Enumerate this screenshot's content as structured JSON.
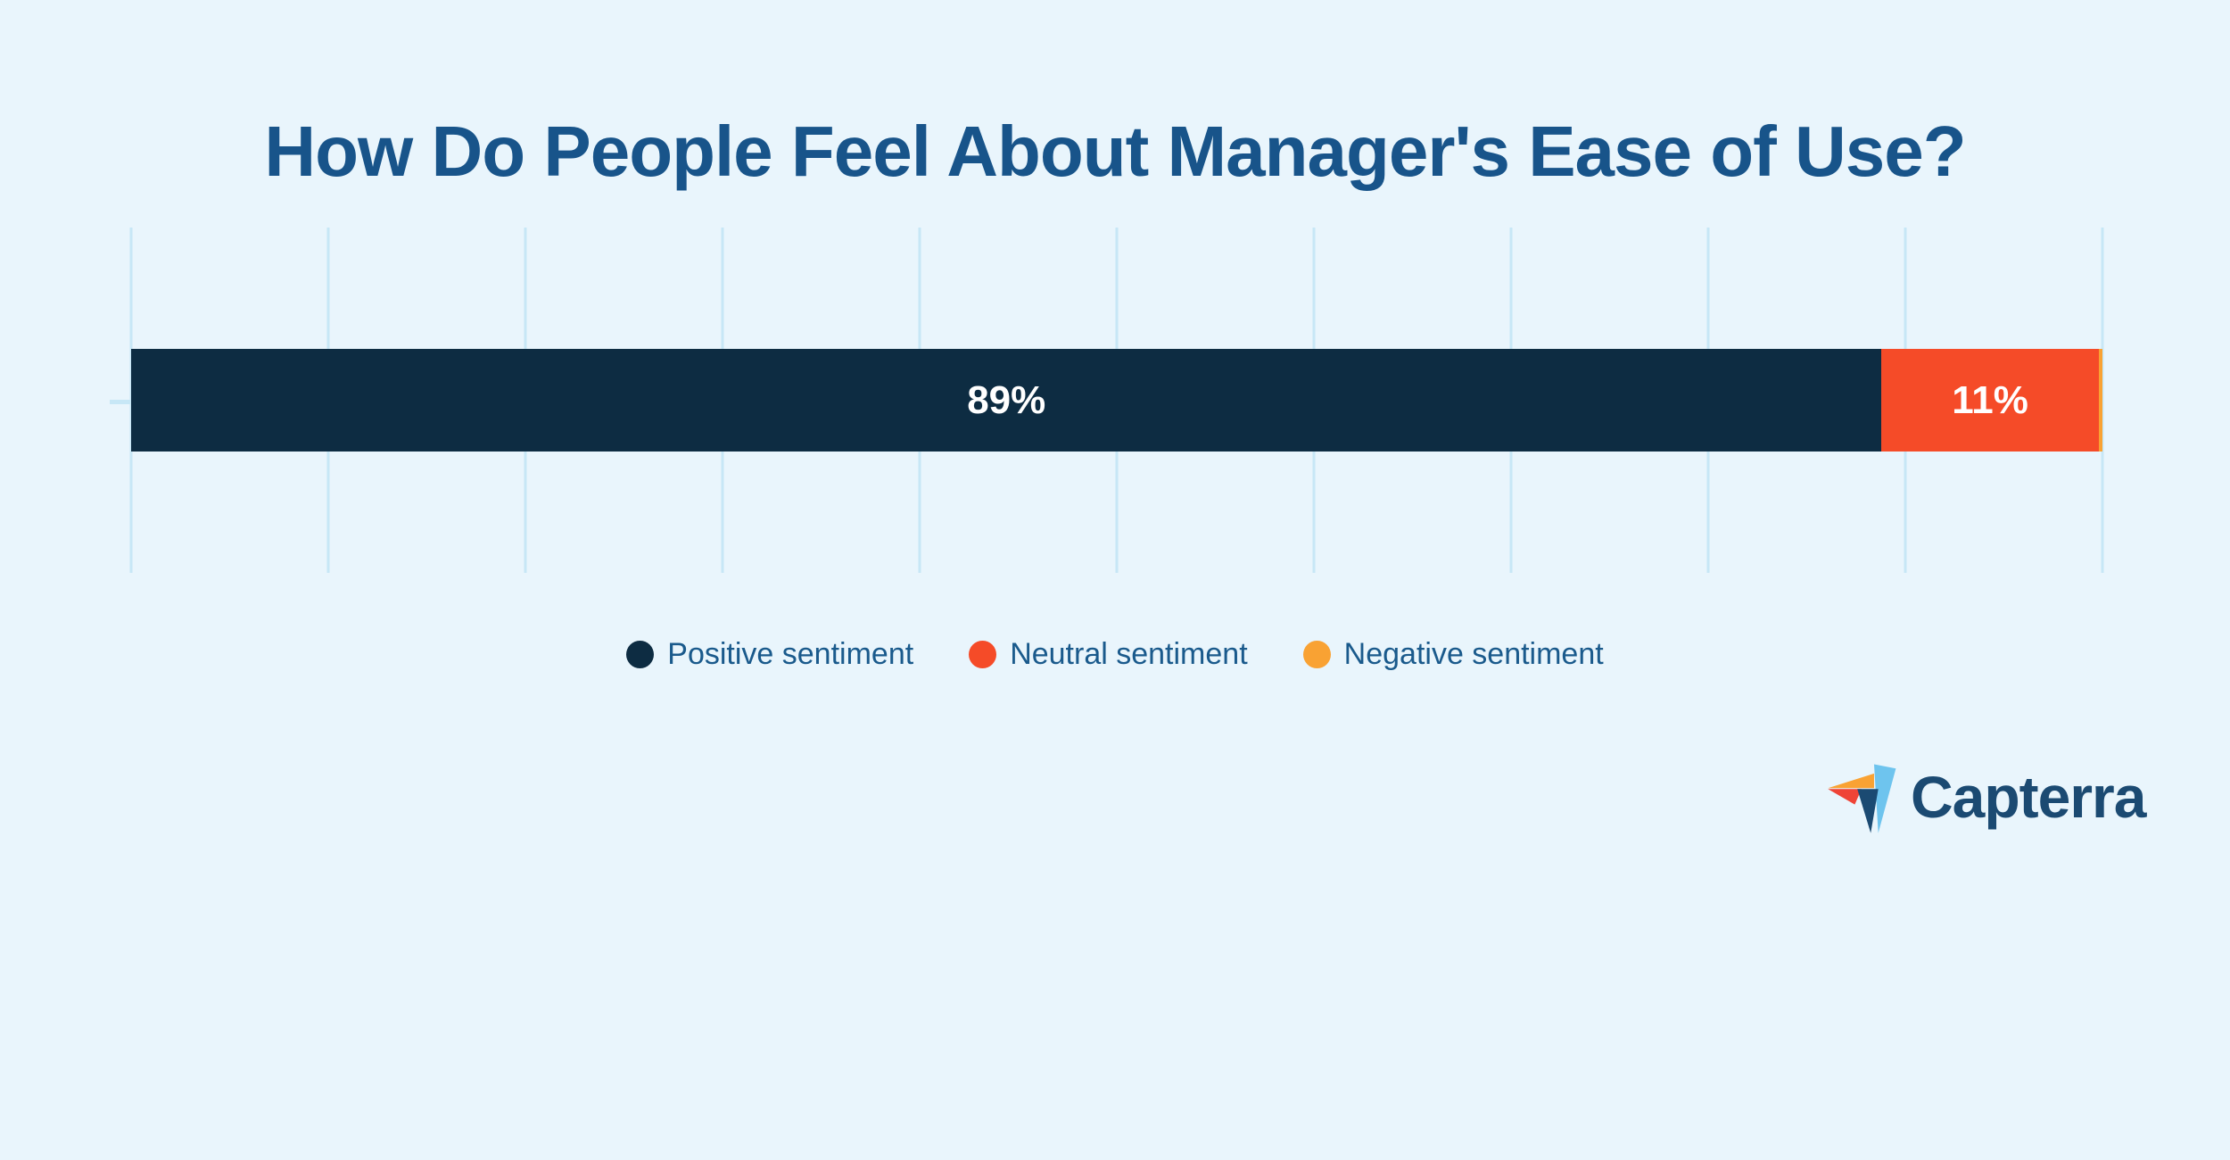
{
  "title": "How Do People Feel About Manager's Ease of Use?",
  "chart_data": {
    "type": "bar",
    "orientation": "horizontal",
    "stacked": true,
    "categories": [
      "Manager ease of use sentiment"
    ],
    "series": [
      {
        "name": "Positive sentiment",
        "values": [
          89
        ],
        "data_label": "89%",
        "color": "#0d2c42",
        "display_width_percent": 88.8
      },
      {
        "name": "Neutral sentiment",
        "values": [
          11
        ],
        "data_label": "11%",
        "color": "#f54b28",
        "display_width_percent": 11.0
      },
      {
        "name": "Negative sentiment",
        "values": [
          0
        ],
        "data_label": "",
        "color": "#f9a233",
        "display_width_percent": 0.2
      }
    ],
    "title": "How Do People Feel About Manager's Ease of Use?",
    "xlabel": "",
    "ylabel": "",
    "xlim": [
      0,
      100
    ],
    "x_tick_step_percent": 10,
    "gridline_count": 11,
    "grid": true,
    "legend_position": "bottom-center"
  },
  "legend": {
    "items": [
      {
        "label": "Positive sentiment",
        "color": "#0d2c42"
      },
      {
        "label": "Neutral sentiment",
        "color": "#f54b28"
      },
      {
        "label": "Negative sentiment",
        "color": "#f9a233"
      }
    ]
  },
  "branding": {
    "logo_text": "Capterra"
  },
  "colors": {
    "background": "#e9f5fc",
    "gridline": "#c7e7f6",
    "title_text": "#18548a",
    "legend_text": "#1a5a8c",
    "bar_label_text": "#ffffff",
    "bar_positive": "#0d2c42",
    "bar_neutral": "#f54b28",
    "bar_negative": "#f9a233",
    "logo_navy": "#1b4a72",
    "logo_lightblue": "#6ec4ee",
    "logo_orange": "#f9a233",
    "logo_red": "#ef4437"
  }
}
